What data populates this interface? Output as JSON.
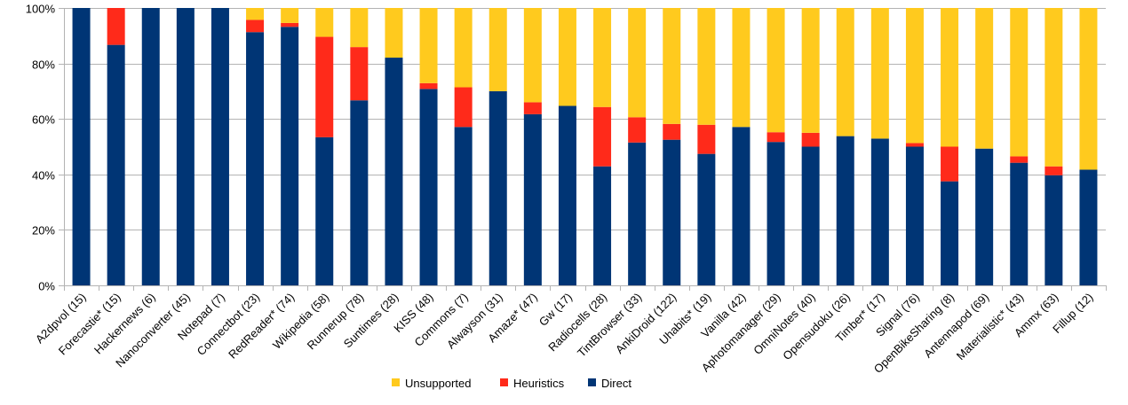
{
  "chart_data": {
    "type": "bar",
    "stacked": true,
    "ylim": [
      0,
      100
    ],
    "yticks": [
      "0%",
      "20%",
      "40%",
      "60%",
      "80%",
      "100%"
    ],
    "grid": true,
    "legend_position": "bottom",
    "categories": [
      "A2dpvol (15)",
      "Forecastie* (15)",
      "Hackernews (6)",
      "Nanoconverter (45)",
      "Notepad (7)",
      "Connectbot (23)",
      "RedReader* (74)",
      "Wikipedia (58)",
      "Runnerup (78)",
      "Suntimes (28)",
      "KISS (48)",
      "Commons (7)",
      "Alwayson (31)",
      "Amaze* (47)",
      "Gw (17)",
      "Radiocells (28)",
      "TintBrowser (33)",
      "AnkiDroid (122)",
      "Uhabits* (19)",
      "Vanilla (42)",
      "Aphotomanager (29)",
      "OmniNotes (40)",
      "Opensudoku (26)",
      "Timber* (17)",
      "Signal (76)",
      "OpenBikeSharing (8)",
      "Antennapod (69)",
      "Materialistic* (43)",
      "Ammx (63)",
      "Fillup (12)"
    ],
    "series": [
      {
        "name": "Direct",
        "color": "#003575",
        "values": [
          100,
          86.7,
          100,
          100,
          100,
          91.3,
          93.2,
          53.4,
          66.7,
          82.1,
          70.8,
          57.1,
          70,
          61.7,
          64.7,
          42.9,
          51.5,
          52.5,
          47.4,
          57.1,
          51.7,
          50,
          53.8,
          52.9,
          50,
          37.5,
          49.3,
          44.2,
          39.7,
          41.7
        ]
      },
      {
        "name": "Heuristics",
        "color": "#ff2a1a",
        "values": [
          0,
          13.3,
          0,
          0,
          0,
          4.4,
          1.4,
          36.2,
          19.2,
          0,
          2.1,
          14.3,
          0,
          4.3,
          0,
          21.4,
          9.1,
          5.7,
          10.5,
          0,
          3.5,
          5,
          0,
          0,
          1.3,
          12.5,
          0,
          2.3,
          3.2,
          0
        ]
      },
      {
        "name": "Unsupported",
        "color": "#ffca1e",
        "values": [
          0,
          0,
          0,
          0,
          0,
          4.3,
          5.4,
          10.4,
          14.1,
          17.9,
          27.1,
          28.6,
          30,
          34,
          35.3,
          35.7,
          39.4,
          41.8,
          42.1,
          42.9,
          44.8,
          45,
          46.2,
          47.1,
          48.7,
          50,
          50.7,
          53.5,
          57.1,
          58.3
        ]
      }
    ],
    "legend_order": [
      "Unsupported",
      "Heuristics",
      "Direct"
    ]
  }
}
